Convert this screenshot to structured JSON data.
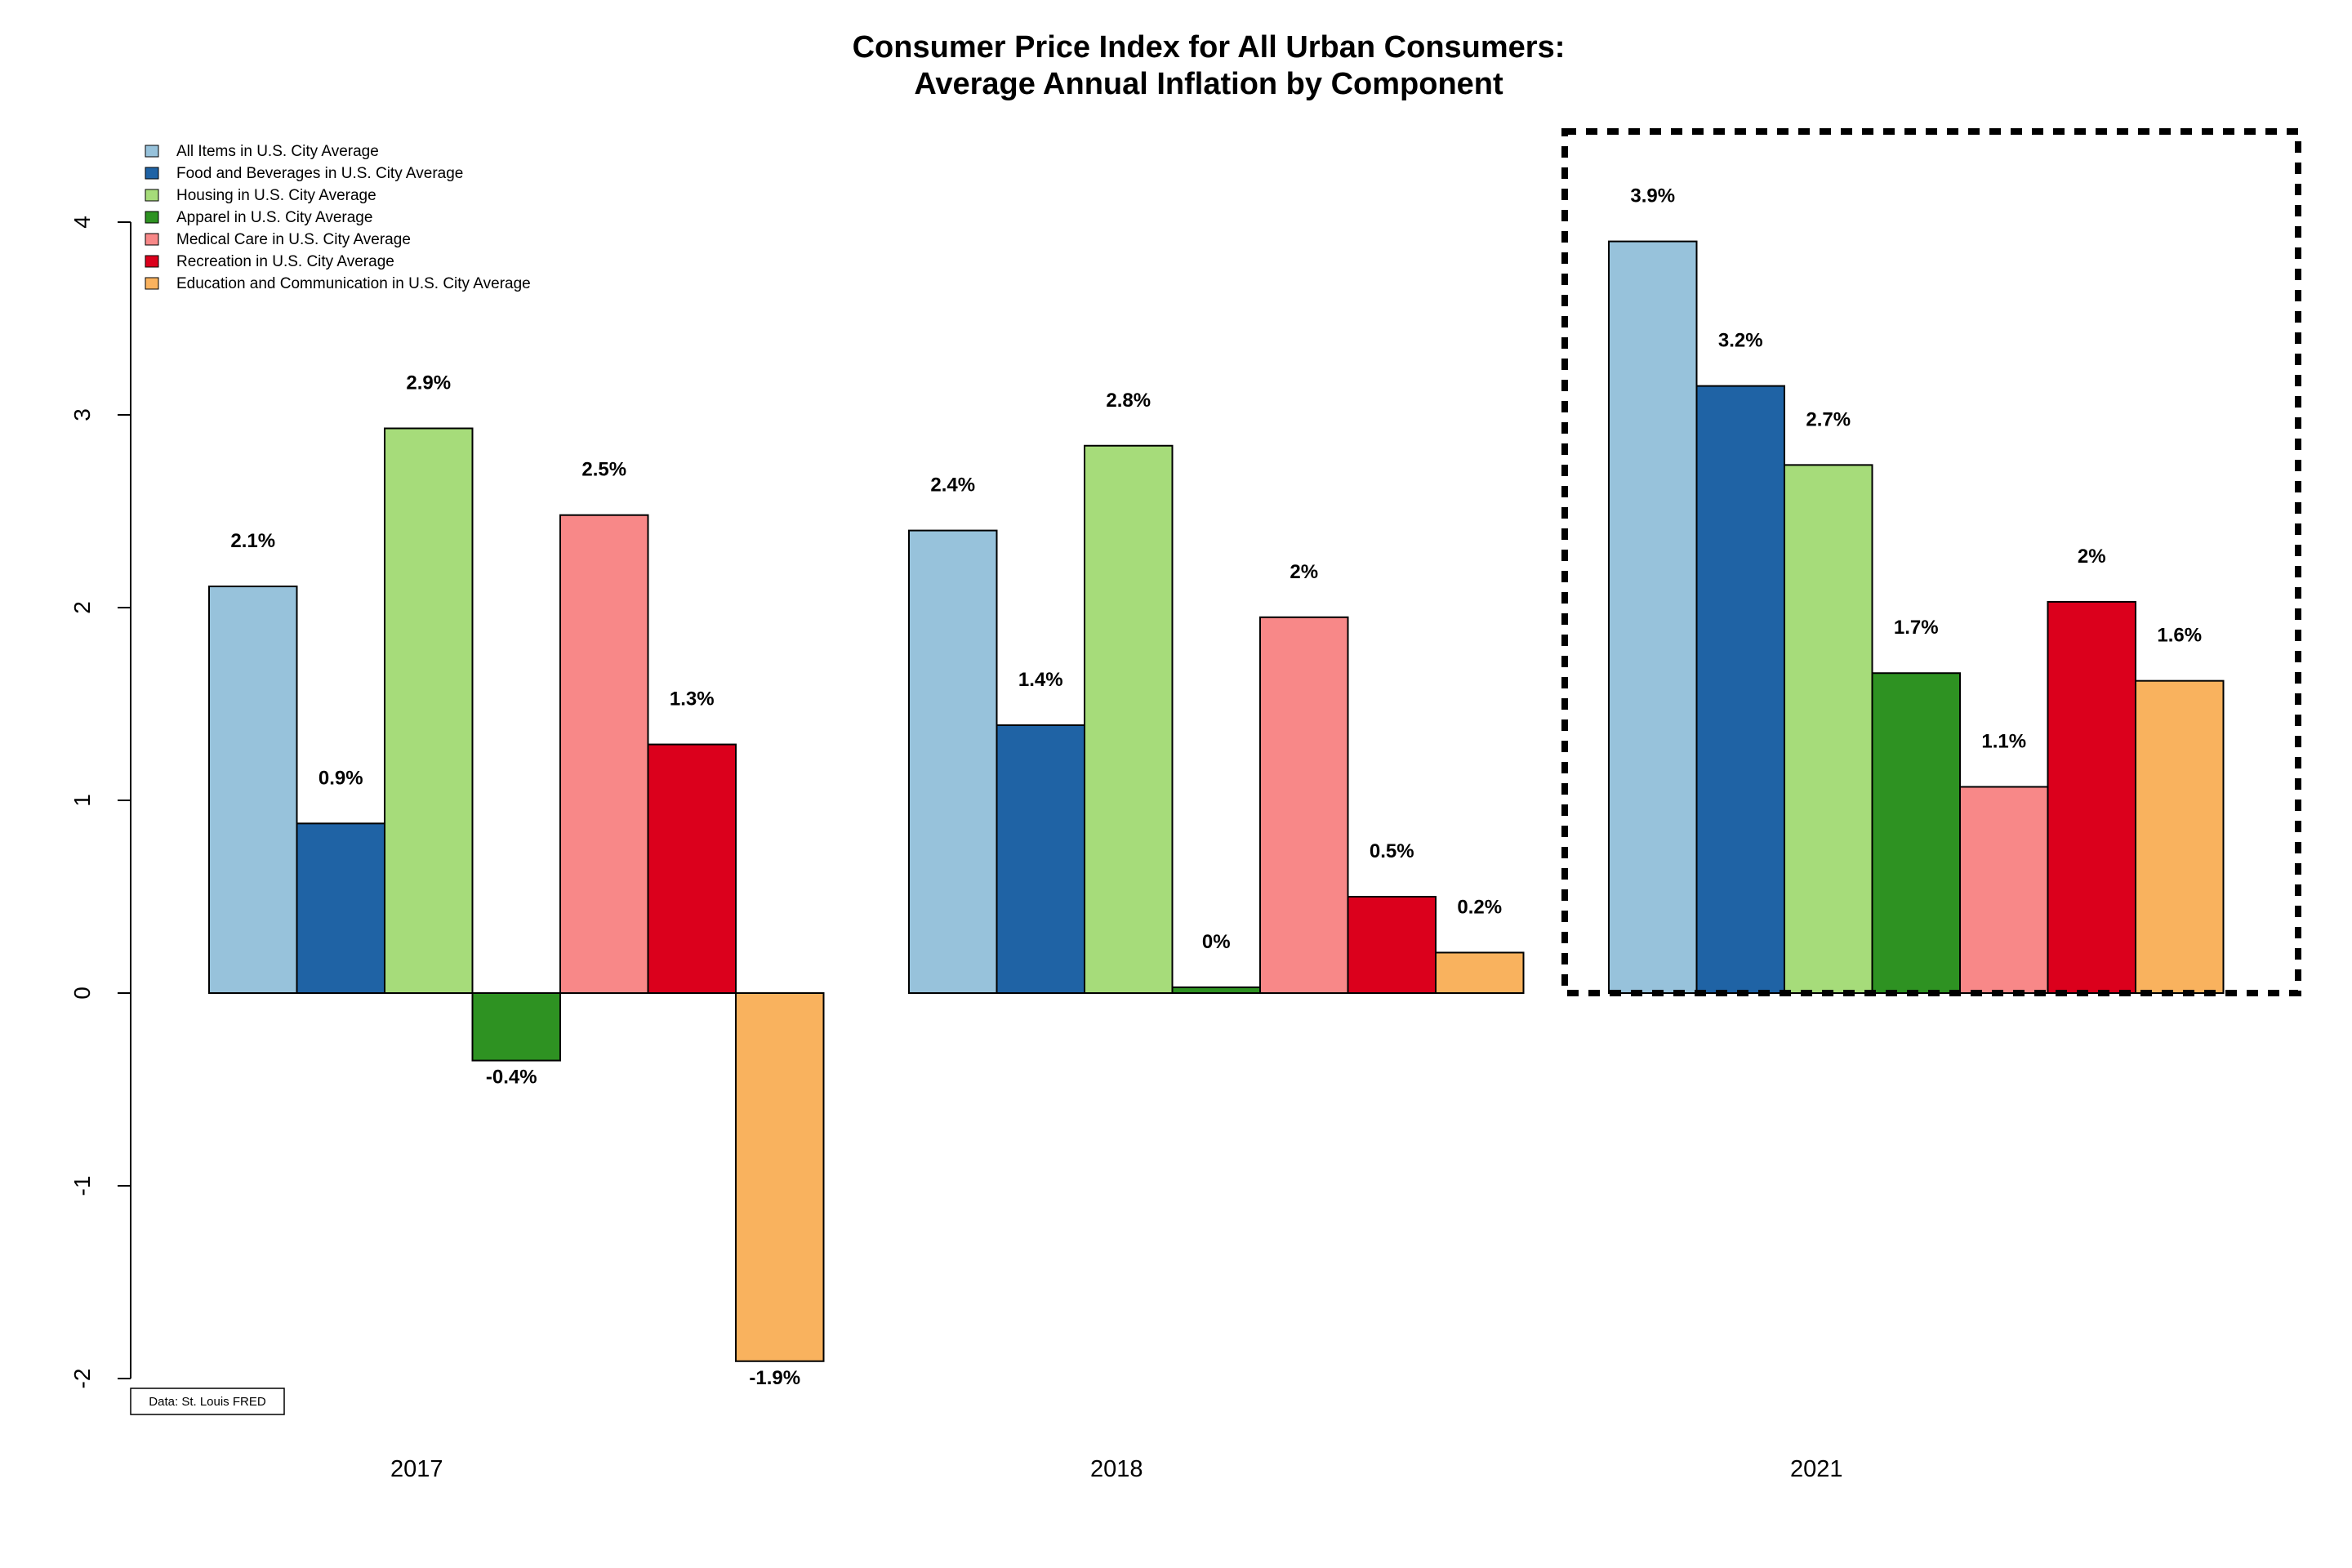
{
  "chart_data": {
    "type": "bar",
    "title": "Consumer Price Index for All Urban Consumers:",
    "subtitle": "Average Annual Inflation by Component",
    "categories": [
      "2017",
      "2018",
      "2021"
    ],
    "ylim": [
      -2,
      4
    ],
    "yticks": [
      "-2",
      "-1",
      "0",
      "1",
      "2",
      "3",
      "4"
    ],
    "legend_position": "top-left",
    "grid": false,
    "series": [
      {
        "name": "All Items in U.S. City Average",
        "color": "#97C2DB",
        "values": [
          2.11,
          2.4,
          3.9
        ],
        "labels": [
          "2.1%",
          "2.4%",
          "3.9%"
        ]
      },
      {
        "name": "Food and Beverages in U.S. City Average",
        "color": "#1F63A5",
        "values": [
          0.88,
          1.39,
          3.15
        ],
        "labels": [
          "0.9%",
          "1.4%",
          "3.2%"
        ]
      },
      {
        "name": "Housing in U.S. City Average",
        "color": "#A6DC7A",
        "values": [
          2.93,
          2.84,
          2.74
        ],
        "labels": [
          "2.9%",
          "2.8%",
          "2.7%"
        ]
      },
      {
        "name": "Apparel in U.S. City Average",
        "color": "#2E9222",
        "values": [
          -0.35,
          0.03,
          1.66
        ],
        "labels": [
          "-0.4%",
          "0%",
          "1.7%"
        ]
      },
      {
        "name": "Medical Care in U.S. City Average",
        "color": "#F88888",
        "values": [
          2.48,
          1.95,
          1.07
        ],
        "labels": [
          "2.5%",
          "2%",
          "1.1%"
        ]
      },
      {
        "name": "Recreation in U.S. City Average",
        "color": "#DB001C",
        "values": [
          1.29,
          0.5,
          2.03
        ],
        "labels": [
          "1.3%",
          "0.5%",
          "2%"
        ]
      },
      {
        "name": "Education and Communication in U.S. City Average",
        "color": "#F9B25E",
        "values": [
          -1.91,
          0.21,
          1.62
        ],
        "labels": [
          "-1.9%",
          "0.2%",
          "1.6%"
        ]
      }
    ],
    "highlight_category": "2021",
    "source_note": "Data: St. Louis FRED"
  }
}
